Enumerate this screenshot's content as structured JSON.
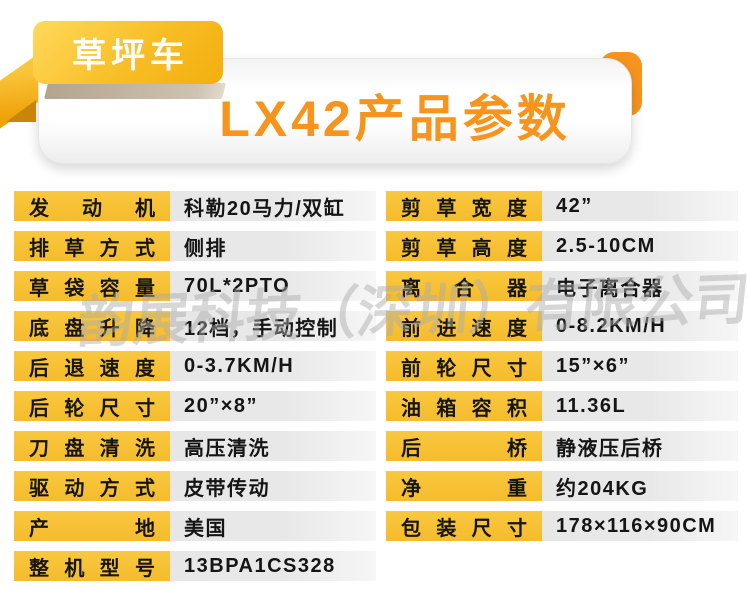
{
  "header": {
    "badge": "草坪车",
    "title": "LX42产品参数"
  },
  "watermark": "韵展科技（深圳）有限公司",
  "colors": {
    "accent_orange": "#F7941E",
    "label_yellow": "#F7C23C",
    "value_gray": "#E8E8E8",
    "text_dark": "#151515"
  },
  "spec_table": {
    "left_column": [
      {
        "label": "发动机",
        "value": "科勒20马力/双缸"
      },
      {
        "label": "排草方式",
        "value": "侧排"
      },
      {
        "label": "草袋容量",
        "value": "70L*2PTO"
      },
      {
        "label": "底盘升降",
        "value": "12档，手动控制"
      },
      {
        "label": "后退速度",
        "value": "0-3.7KM/H"
      },
      {
        "label": "后轮尺寸",
        "value": "20”×8”"
      },
      {
        "label": "刀盘清洗",
        "value": "高压清洗"
      },
      {
        "label": "驱动方式",
        "value": "皮带传动"
      },
      {
        "label": "产地",
        "value": "美国"
      },
      {
        "label": "整机型号",
        "value": "13BPA1CS328"
      }
    ],
    "right_column": [
      {
        "label": "剪草宽度",
        "value": "42”"
      },
      {
        "label": "剪草高度",
        "value": "2.5-10CM"
      },
      {
        "label": "离合器",
        "value": "电子离合器"
      },
      {
        "label": "前进速度",
        "value": "0-8.2KM/H"
      },
      {
        "label": "前轮尺寸",
        "value": "15”×6”"
      },
      {
        "label": "油箱容积",
        "value": "11.36L"
      },
      {
        "label": "后桥",
        "value": "静液压后桥"
      },
      {
        "label": "净重",
        "value": "约204KG"
      },
      {
        "label": "包装尺寸",
        "value": "178×116×90CM"
      }
    ]
  }
}
